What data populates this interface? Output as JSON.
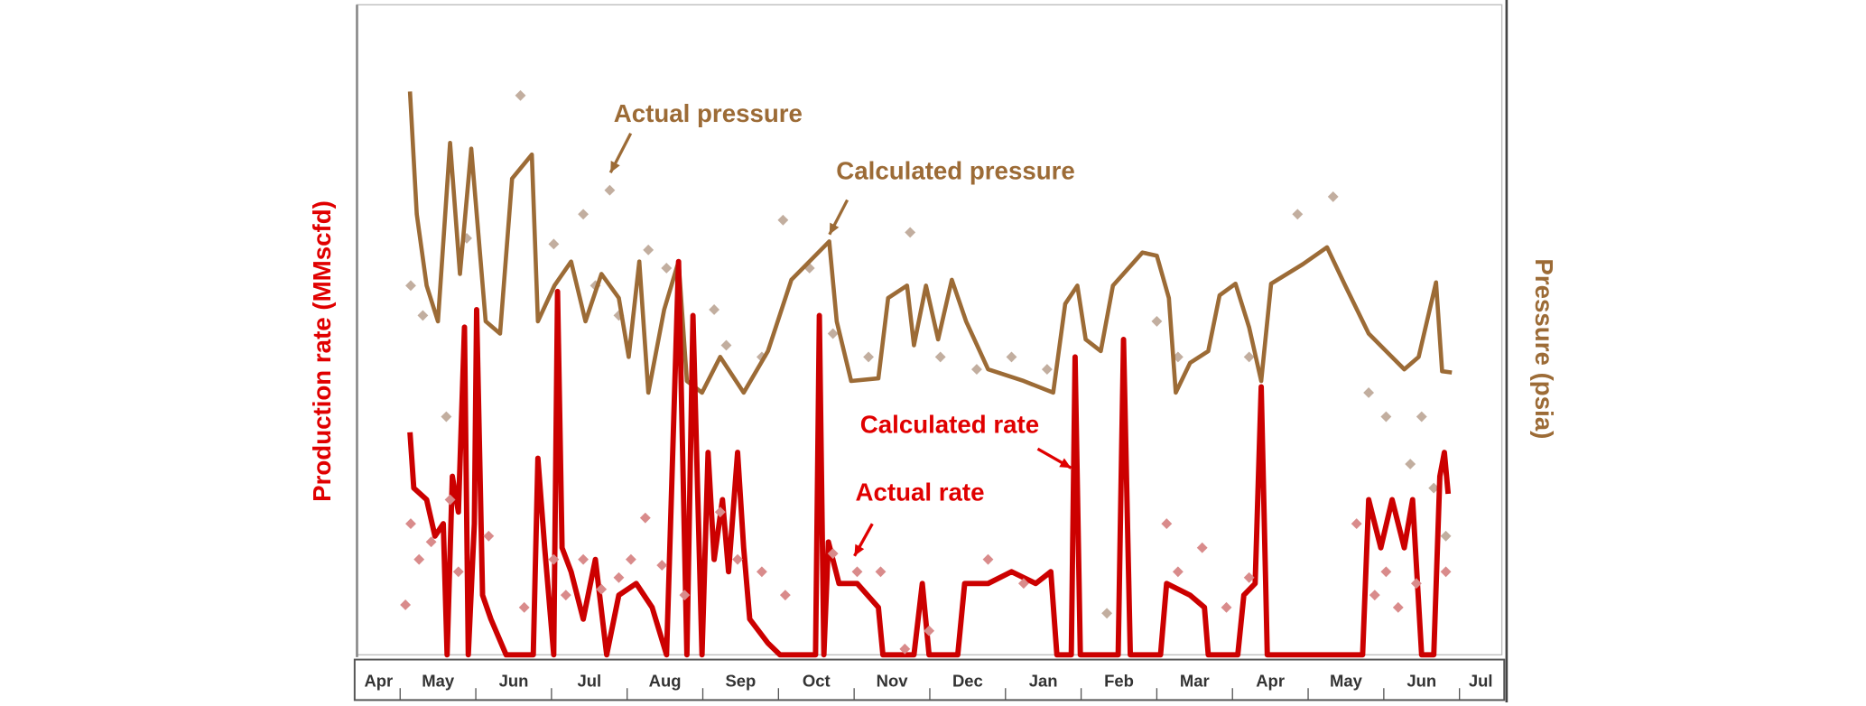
{
  "chart_data": {
    "type": "line",
    "ylabel": "Production rate (MMscfd)",
    "y2label": "Pressure (psia)",
    "categories": [
      "Apr",
      "May",
      "Jun",
      "Jul",
      "Aug",
      "Sep",
      "Oct",
      "Nov",
      "Dec",
      "Jan",
      "Feb",
      "Mar",
      "Apr",
      "May",
      "Jun",
      "Jul"
    ],
    "xlim": [
      0.43,
      15.56
    ],
    "ylim": [
      0,
      100
    ],
    "y2lim": [
      0,
      100
    ],
    "series": [
      {
        "name": "Actual pressure",
        "type": "scatter",
        "axis": "y2",
        "color": "#c2ae9f",
        "x": [
          1.14,
          1.3,
          1.61,
          1.88,
          2.59,
          3.03,
          3.42,
          3.77,
          3.58,
          3.89,
          4.28,
          4.52,
          5.15,
          5.31,
          5.78,
          6.06,
          6.41,
          6.72,
          7.19,
          7.74,
          8.14,
          8.62,
          9.08,
          9.55,
          10.34,
          11.0,
          11.28,
          12.22,
          12.86,
          13.33,
          13.8,
          14.03,
          14.35,
          14.5,
          14.66,
          14.82
        ],
        "values": [
          56.9,
          52.3,
          36.7,
          64.2,
          86.2,
          63.3,
          67.9,
          71.6,
          56.9,
          52.3,
          62.4,
          59.6,
          53.2,
          47.7,
          45.9,
          67.0,
          59.6,
          49.5,
          45.9,
          65.1,
          45.9,
          44.0,
          45.9,
          44.0,
          6.4,
          51.4,
          45.9,
          45.9,
          67.9,
          70.6,
          40.4,
          36.7,
          29.4,
          36.7,
          25.7,
          18.3
        ]
      },
      {
        "name": "Calculated pressure",
        "type": "line",
        "axis": "y2",
        "color": "#9c6b36",
        "x": [
          1.13,
          1.22,
          1.35,
          1.5,
          1.66,
          1.79,
          1.94,
          2.13,
          2.32,
          2.48,
          2.74,
          2.82,
          3.04,
          3.26,
          3.45,
          3.66,
          3.89,
          4.02,
          4.16,
          4.28,
          4.49,
          4.68,
          4.79,
          4.99,
          5.23,
          5.54,
          5.86,
          6.17,
          6.67,
          6.77,
          6.96,
          7.32,
          7.45,
          7.7,
          7.79,
          7.95,
          8.11,
          8.29,
          8.48,
          8.77,
          9.24,
          9.63,
          9.79,
          9.95,
          10.06,
          10.26,
          10.42,
          10.81,
          11.0,
          11.16,
          11.25,
          11.44,
          11.68,
          11.83,
          12.04,
          12.22,
          12.38,
          12.51,
          12.93,
          13.25,
          13.49,
          13.8,
          14.03,
          14.27,
          14.46,
          14.69,
          14.77,
          14.9
        ],
        "values": [
          86.8,
          67.9,
          56.9,
          51.4,
          78.9,
          58.7,
          78.0,
          51.4,
          49.5,
          73.4,
          77.1,
          51.4,
          56.9,
          60.6,
          51.4,
          58.7,
          55.0,
          45.9,
          60.6,
          40.4,
          53.2,
          60.6,
          42.2,
          40.4,
          45.9,
          40.4,
          46.8,
          57.8,
          63.7,
          51.4,
          42.2,
          42.6,
          55.0,
          56.9,
          47.7,
          56.9,
          48.6,
          57.8,
          51.4,
          44.0,
          42.2,
          40.4,
          54.1,
          56.9,
          48.6,
          46.8,
          56.9,
          62.0,
          61.5,
          55.0,
          40.4,
          45.0,
          46.8,
          55.4,
          57.2,
          50.5,
          42.2,
          57.2,
          60.2,
          62.8,
          56.9,
          49.5,
          46.8,
          44.0,
          45.9,
          57.4,
          43.7,
          43.5
        ]
      },
      {
        "name": "Calculated rate",
        "type": "line",
        "axis": "y",
        "color": "#cc0000",
        "x": [
          1.13,
          1.18,
          1.35,
          1.46,
          1.57,
          1.62,
          1.69,
          1.77,
          1.85,
          1.9,
          1.98,
          2.01,
          2.09,
          2.2,
          2.4,
          2.76,
          2.82,
          2.91,
          3.03,
          3.08,
          3.14,
          3.26,
          3.42,
          3.58,
          3.73,
          3.89,
          4.12,
          4.33,
          4.52,
          4.68,
          4.79,
          4.87,
          4.99,
          5.07,
          5.15,
          5.26,
          5.34,
          5.46,
          5.54,
          5.62,
          5.86,
          6.02,
          6.49,
          6.54,
          6.6,
          6.66,
          6.8,
          7.04,
          7.32,
          7.38,
          7.79,
          7.9,
          7.99,
          8.37,
          8.46,
          8.77,
          9.08,
          9.4,
          9.6,
          9.68,
          9.87,
          9.92,
          9.99,
          10.49,
          10.56,
          10.65,
          11.05,
          11.13,
          11.44,
          11.63,
          11.68,
          12.07,
          12.15,
          12.3,
          12.38,
          12.46,
          13.72,
          13.8,
          13.96,
          14.11,
          14.27,
          14.38,
          14.5,
          14.66,
          14.74,
          14.8,
          14.85
        ],
        "values": [
          34.3,
          25.7,
          23.9,
          18.3,
          20.2,
          0,
          27.5,
          22.0,
          50.5,
          0,
          20.2,
          53.2,
          9.2,
          5.5,
          0,
          0,
          30.3,
          16.5,
          0,
          56.0,
          16.5,
          12.8,
          5.5,
          14.7,
          0,
          9.2,
          11.0,
          7.3,
          0,
          60.6,
          0,
          52.3,
          0,
          31.2,
          14.7,
          23.9,
          12.8,
          31.2,
          16.5,
          5.5,
          1.8,
          0,
          0,
          52.3,
          0,
          17.4,
          11.0,
          11.0,
          7.3,
          0,
          0,
          11.0,
          0,
          0,
          11.0,
          11.0,
          12.8,
          11.0,
          12.8,
          0,
          0,
          45.9,
          0,
          0,
          48.6,
          0,
          0,
          11.0,
          9.2,
          7.3,
          0,
          0,
          9.2,
          11.0,
          41.3,
          0,
          0,
          23.9,
          16.5,
          23.9,
          16.5,
          23.9,
          0,
          0,
          27.5,
          31.2,
          24.8
        ]
      },
      {
        "name": "Actual rate",
        "type": "scatter",
        "axis": "y",
        "color": "#d98b8b",
        "x": [
          1.07,
          1.14,
          1.25,
          1.41,
          1.66,
          1.77,
          2.17,
          2.64,
          3.03,
          3.19,
          3.42,
          3.66,
          3.89,
          4.05,
          4.24,
          4.46,
          4.76,
          5.23,
          5.46,
          5.78,
          6.09,
          6.72,
          7.04,
          7.35,
          7.67,
          7.99,
          8.77,
          9.24,
          11.13,
          11.28,
          11.6,
          11.92,
          12.22,
          13.64,
          13.88,
          14.03,
          14.19,
          14.43,
          14.82
        ],
        "values": [
          7.7,
          20.2,
          14.7,
          17.4,
          23.9,
          12.8,
          18.3,
          7.3,
          14.7,
          9.2,
          14.7,
          10.1,
          11.9,
          14.7,
          21.1,
          13.8,
          9.2,
          22.0,
          14.7,
          12.8,
          9.2,
          15.6,
          12.8,
          12.8,
          0.9,
          3.7,
          14.7,
          11.0,
          20.2,
          12.8,
          16.5,
          7.3,
          11.9,
          20.2,
          9.2,
          12.8,
          7.3,
          11.0,
          12.8
        ]
      }
    ]
  }
}
